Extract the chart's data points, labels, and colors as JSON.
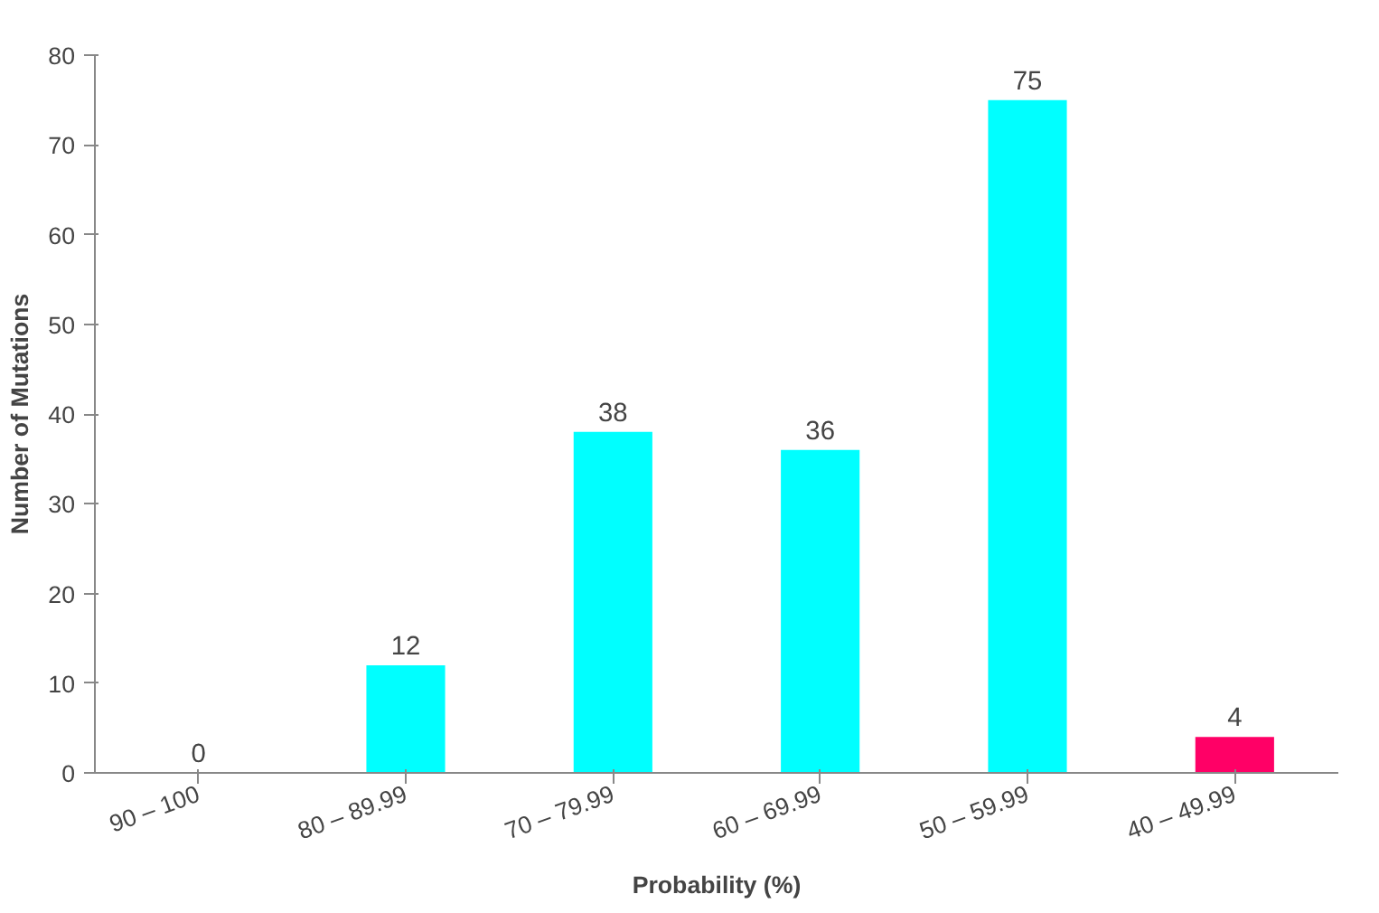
{
  "chart_data": {
    "type": "bar",
    "xlabel": "Probability (%)",
    "ylabel": "Number of Mutations",
    "categories": [
      "90 – 100",
      "80 – 89.99",
      "70 – 79.99",
      "60 – 69.99",
      "50 – 59.99",
      "40 – 49.99"
    ],
    "values": [
      0,
      12,
      38,
      36,
      75,
      4
    ],
    "colors": [
      "#00ffff",
      "#00ffff",
      "#00ffff",
      "#00ffff",
      "#00ffff",
      "#ff0066"
    ],
    "ylim": [
      0,
      80
    ],
    "yticks": [
      0,
      10,
      20,
      30,
      40,
      50,
      60,
      70,
      80
    ],
    "grid": false,
    "data_labels": true
  }
}
